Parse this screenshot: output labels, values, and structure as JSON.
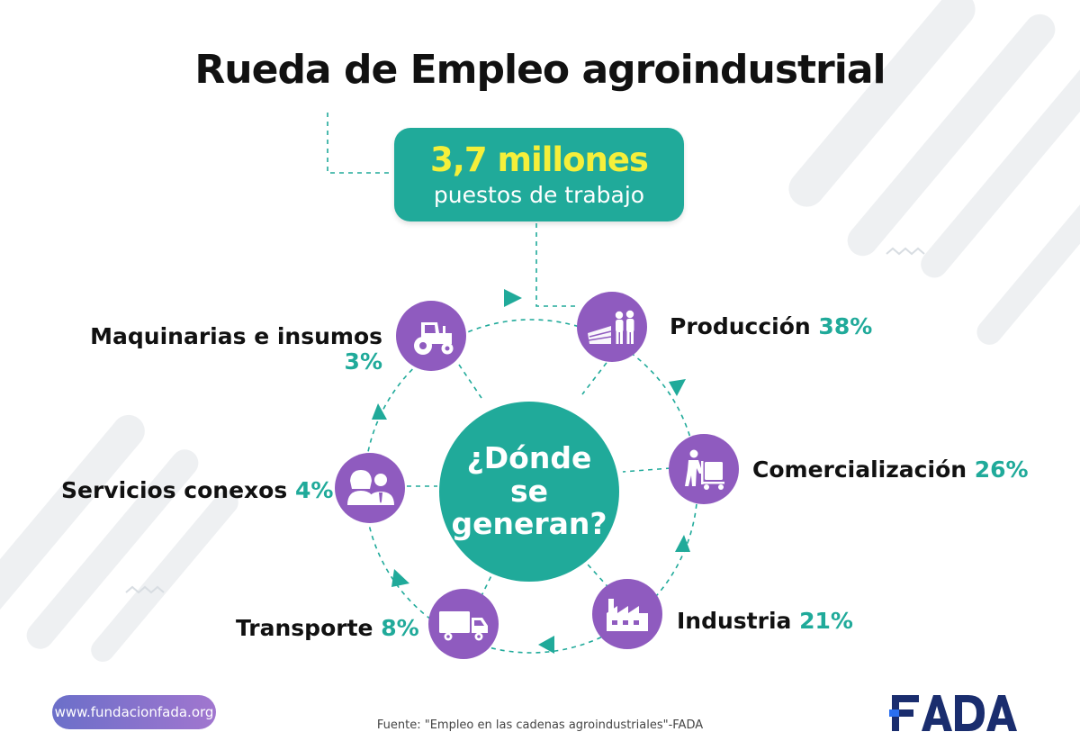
{
  "title": "Rueda de Empleo agroindustrial",
  "total": {
    "value": "3,7 millones",
    "label": "puestos de trabajo"
  },
  "center": {
    "question": "¿Dónde se generan?"
  },
  "sectors": [
    {
      "id": "produccion",
      "name": "Producción",
      "share": "38%",
      "icon": "farmers-field-icon"
    },
    {
      "id": "comercializacion",
      "name": "Comercialización",
      "share": "26%",
      "icon": "hand-cart-worker-icon"
    },
    {
      "id": "industria",
      "name": "Industria",
      "share": "21%",
      "icon": "factory-icon"
    },
    {
      "id": "transporte",
      "name": "Transporte",
      "share": "8%",
      "icon": "truck-icon"
    },
    {
      "id": "servicios",
      "name": "Servicios conexos",
      "share": "4%",
      "icon": "people-icon"
    },
    {
      "id": "maquinarias",
      "name": "Maquinarias e insumos",
      "share": "3%",
      "icon": "tractor-icon"
    }
  ],
  "footer": {
    "website": "www.fundacionfada.org",
    "source": "Fuente: \"Empleo en las cadenas agroindustriales\"-FADA",
    "logo": "FADA"
  },
  "colors": {
    "teal": "#20aa9a",
    "purple": "#8f5bbf",
    "yellow": "#f5ef3a",
    "navy": "#1a2d6e",
    "logo_blue": "#2a6ff0"
  }
}
